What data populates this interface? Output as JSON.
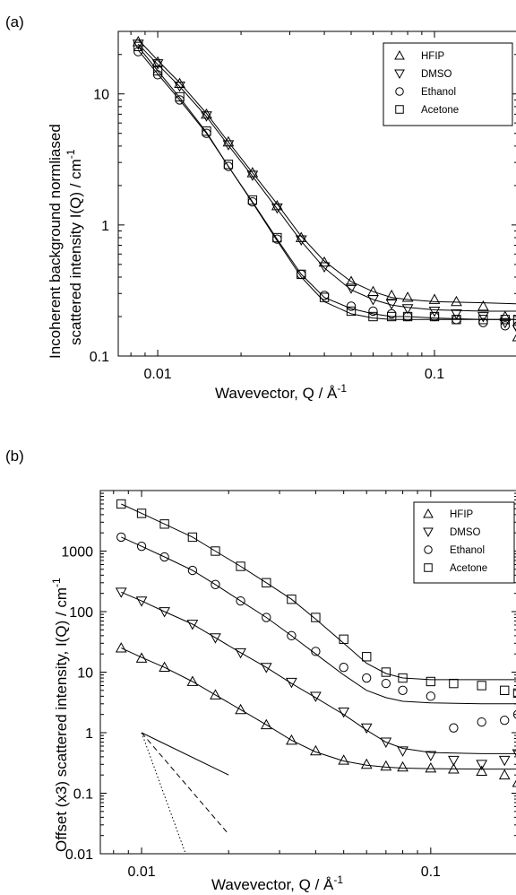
{
  "chart_data": [
    {
      "type": "scatter",
      "panel_label": "(a)",
      "xscale": "log",
      "yscale": "log",
      "xlim": [
        0.0072,
        0.2
      ],
      "ylim": [
        0.1,
        30
      ],
      "xticks": [
        {
          "v": 0.01,
          "label": "0.01"
        },
        {
          "v": 0.1,
          "label": "0.1"
        }
      ],
      "yticks": [
        {
          "v": 0.1,
          "label": "0.1"
        },
        {
          "v": 1,
          "label": "1"
        },
        {
          "v": 10,
          "label": "10"
        }
      ],
      "xlabel": "Wavevector,  Q / Å",
      "xlabel_sup": "-1",
      "ylabel_line1": "Incoherent background normliased",
      "ylabel_line2": "scattered intensity  I(Q) / cm",
      "ylabel_sup": "-1",
      "legend_position": "top-right",
      "series": [
        {
          "name": "HFIP",
          "marker": "triangle-up",
          "x": [
            0.0085,
            0.01,
            0.012,
            0.015,
            0.018,
            0.022,
            0.027,
            0.033,
            0.04,
            0.05,
            0.06,
            0.07,
            0.08,
            0.1,
            0.12,
            0.15,
            0.18,
            0.2
          ],
          "y": [
            25,
            17.5,
            12,
            7,
            4.3,
            2.5,
            1.4,
            0.8,
            0.52,
            0.37,
            0.31,
            0.29,
            0.28,
            0.27,
            0.26,
            0.24,
            0.2,
            0.14
          ]
        },
        {
          "name": "DMSO",
          "marker": "triangle-down",
          "x": [
            0.0085,
            0.01,
            0.012,
            0.015,
            0.018,
            0.022,
            0.027,
            0.033,
            0.04,
            0.05,
            0.06,
            0.07,
            0.08,
            0.1,
            0.12,
            0.15,
            0.18,
            0.2
          ],
          "y": [
            24,
            17,
            11.5,
            6.8,
            4.1,
            2.4,
            1.35,
            0.77,
            0.48,
            0.33,
            0.27,
            0.25,
            0.23,
            0.22,
            0.21,
            0.2,
            0.18,
            0.16
          ]
        },
        {
          "name": "Ethanol",
          "marker": "circle",
          "x": [
            0.0085,
            0.01,
            0.012,
            0.015,
            0.018,
            0.022,
            0.027,
            0.033,
            0.04,
            0.05,
            0.06,
            0.07,
            0.08,
            0.1,
            0.12,
            0.15,
            0.18,
            0.2
          ],
          "y": [
            21,
            14,
            9,
            5,
            2.8,
            1.5,
            0.78,
            0.42,
            0.29,
            0.24,
            0.22,
            0.21,
            0.2,
            0.2,
            0.19,
            0.18,
            0.17,
            0.17
          ]
        },
        {
          "name": "Acetone",
          "marker": "square",
          "x": [
            0.0085,
            0.01,
            0.012,
            0.015,
            0.018,
            0.022,
            0.027,
            0.033,
            0.04,
            0.05,
            0.06,
            0.07,
            0.08,
            0.1,
            0.12,
            0.15,
            0.18,
            0.2
          ],
          "y": [
            23,
            15,
            9.5,
            5.2,
            2.9,
            1.55,
            0.8,
            0.42,
            0.28,
            0.22,
            0.2,
            0.2,
            0.2,
            0.2,
            0.19,
            0.19,
            0.19,
            0.19
          ]
        }
      ],
      "fit_lines": [
        {
          "x": [
            0.0085,
            0.01,
            0.012,
            0.015,
            0.018,
            0.022,
            0.027,
            0.033,
            0.04,
            0.05,
            0.06,
            0.07,
            0.08,
            0.1,
            0.15,
            0.2
          ],
          "y": [
            26,
            18,
            12.2,
            7.1,
            4.3,
            2.5,
            1.45,
            0.82,
            0.53,
            0.37,
            0.31,
            0.28,
            0.27,
            0.26,
            0.255,
            0.25
          ]
        },
        {
          "x": [
            0.0085,
            0.01,
            0.012,
            0.015,
            0.018,
            0.022,
            0.027,
            0.033,
            0.04,
            0.05,
            0.06,
            0.07,
            0.08,
            0.1,
            0.15,
            0.2
          ],
          "y": [
            24,
            16.8,
            11.4,
            6.7,
            4.05,
            2.35,
            1.33,
            0.75,
            0.47,
            0.32,
            0.27,
            0.245,
            0.235,
            0.225,
            0.22,
            0.22
          ]
        },
        {
          "x": [
            0.0085,
            0.01,
            0.012,
            0.015,
            0.018,
            0.022,
            0.027,
            0.033,
            0.04,
            0.05,
            0.06,
            0.07,
            0.08,
            0.1,
            0.15,
            0.2
          ],
          "y": [
            21.5,
            14.2,
            9,
            5,
            2.8,
            1.5,
            0.78,
            0.42,
            0.28,
            0.23,
            0.21,
            0.2,
            0.2,
            0.195,
            0.19,
            0.19
          ]
        },
        {
          "x": [
            0.0085,
            0.01,
            0.012,
            0.015,
            0.018,
            0.022,
            0.027,
            0.033,
            0.04,
            0.05,
            0.06,
            0.07,
            0.08,
            0.1,
            0.15,
            0.2
          ],
          "y": [
            23,
            15,
            9.4,
            5.1,
            2.8,
            1.48,
            0.76,
            0.4,
            0.26,
            0.21,
            0.195,
            0.19,
            0.19,
            0.19,
            0.19,
            0.19
          ]
        }
      ]
    },
    {
      "type": "scatter",
      "panel_label": "(b)",
      "xscale": "log",
      "yscale": "log",
      "xlim": [
        0.0072,
        0.2
      ],
      "ylim": [
        0.01,
        10000
      ],
      "xticks": [
        {
          "v": 0.01,
          "label": "0.01"
        },
        {
          "v": 0.1,
          "label": "0.1"
        }
      ],
      "yticks": [
        {
          "v": 0.01,
          "label": "0.01"
        },
        {
          "v": 0.1,
          "label": "0.1"
        },
        {
          "v": 1,
          "label": "1"
        },
        {
          "v": 10,
          "label": "10"
        },
        {
          "v": 100,
          "label": "100"
        },
        {
          "v": 1000,
          "label": "1000"
        }
      ],
      "xlabel": "Wavevector, Q / Å",
      "xlabel_sup": "-1",
      "ylabel_line1": "Offset (x3) scattered intensity, I(Q) / cm",
      "ylabel_sup": "-1",
      "legend_position": "top-right",
      "series": [
        {
          "name": "HFIP",
          "marker": "triangle-up",
          "x": [
            0.0085,
            0.01,
            0.012,
            0.015,
            0.018,
            0.022,
            0.027,
            0.033,
            0.04,
            0.05,
            0.06,
            0.07,
            0.08,
            0.1,
            0.12,
            0.15,
            0.18,
            0.2
          ],
          "y": [
            25,
            17,
            12,
            7,
            4.2,
            2.4,
            1.35,
            0.75,
            0.5,
            0.35,
            0.3,
            0.28,
            0.27,
            0.26,
            0.25,
            0.23,
            0.2,
            0.15
          ]
        },
        {
          "name": "DMSO",
          "marker": "triangle-down",
          "x": [
            0.0085,
            0.01,
            0.012,
            0.015,
            0.018,
            0.022,
            0.027,
            0.033,
            0.04,
            0.05,
            0.06,
            0.07,
            0.08,
            0.1,
            0.12,
            0.15,
            0.18,
            0.2
          ],
          "y": [
            210,
            150,
            100,
            62,
            37,
            21,
            12,
            6.8,
            4,
            2.2,
            1.2,
            0.7,
            0.5,
            0.42,
            0.35,
            0.3,
            0.35,
            0.45
          ]
        },
        {
          "name": "Ethanol",
          "marker": "circle",
          "x": [
            0.0085,
            0.01,
            0.012,
            0.015,
            0.018,
            0.022,
            0.027,
            0.033,
            0.04,
            0.05,
            0.06,
            0.07,
            0.08,
            0.1,
            0.12,
            0.15,
            0.18,
            0.2
          ],
          "y": [
            1700,
            1200,
            800,
            480,
            280,
            150,
            80,
            40,
            22,
            12,
            8,
            6.5,
            5,
            4,
            1.2,
            1.5,
            1.6,
            2
          ]
        },
        {
          "name": "Acetone",
          "marker": "square",
          "x": [
            0.0085,
            0.01,
            0.012,
            0.015,
            0.018,
            0.022,
            0.027,
            0.033,
            0.04,
            0.05,
            0.06,
            0.07,
            0.08,
            0.1,
            0.12,
            0.15,
            0.18,
            0.2
          ],
          "y": [
            6000,
            4200,
            2800,
            1700,
            1000,
            560,
            300,
            160,
            80,
            35,
            18,
            10,
            8,
            7,
            6.5,
            6,
            5,
            4.5
          ]
        }
      ],
      "fit_lines": [
        {
          "x": [
            0.0085,
            0.01,
            0.012,
            0.015,
            0.018,
            0.022,
            0.027,
            0.033,
            0.04,
            0.05,
            0.06,
            0.07,
            0.08,
            0.1,
            0.15,
            0.2
          ],
          "y": [
            25,
            17.5,
            12,
            7,
            4.2,
            2.4,
            1.35,
            0.75,
            0.48,
            0.34,
            0.29,
            0.27,
            0.26,
            0.255,
            0.25,
            0.25
          ]
        },
        {
          "x": [
            0.0085,
            0.01,
            0.012,
            0.015,
            0.018,
            0.022,
            0.027,
            0.033,
            0.04,
            0.05,
            0.06,
            0.07,
            0.08,
            0.1,
            0.15,
            0.2
          ],
          "y": [
            210,
            150,
            100,
            62,
            37,
            21,
            12,
            6.5,
            3.8,
            2,
            1.1,
            0.7,
            0.55,
            0.47,
            0.45,
            0.45
          ]
        },
        {
          "x": [
            0.0085,
            0.01,
            0.012,
            0.015,
            0.018,
            0.022,
            0.027,
            0.033,
            0.04,
            0.05,
            0.06,
            0.07,
            0.08,
            0.1,
            0.15,
            0.2
          ],
          "y": [
            1700,
            1200,
            800,
            480,
            280,
            150,
            80,
            40,
            20,
            9,
            5,
            3.8,
            3.3,
            3.1,
            3,
            3
          ]
        },
        {
          "x": [
            0.0085,
            0.01,
            0.012,
            0.015,
            0.018,
            0.022,
            0.027,
            0.033,
            0.04,
            0.05,
            0.06,
            0.07,
            0.08,
            0.1,
            0.15,
            0.2
          ],
          "y": [
            6000,
            4200,
            2800,
            1700,
            1000,
            560,
            300,
            160,
            75,
            30,
            14,
            9.5,
            8,
            7.5,
            7.5,
            7.5
          ]
        }
      ],
      "slope_guides": [
        {
          "style": "solid",
          "x": [
            0.01,
            0.02
          ],
          "y": [
            1,
            0.2
          ]
        },
        {
          "style": "dashed",
          "x": [
            0.01,
            0.02
          ],
          "y": [
            1,
            0.021
          ]
        },
        {
          "style": "dotted",
          "x": [
            0.01,
            0.0142
          ],
          "y": [
            1,
            0.01
          ]
        }
      ]
    }
  ]
}
